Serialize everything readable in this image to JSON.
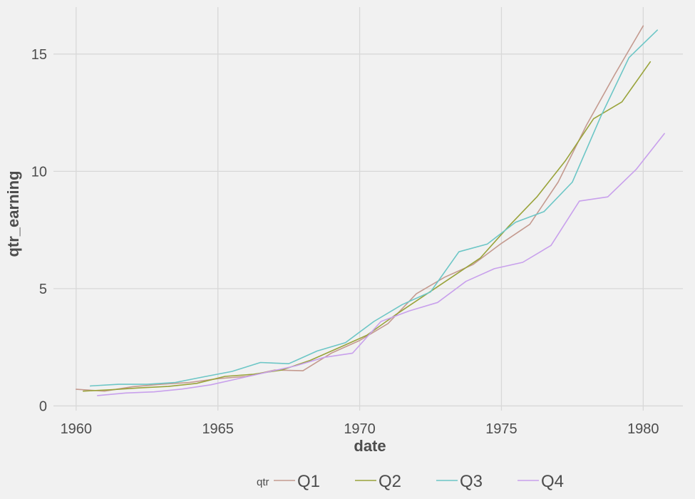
{
  "chart_data": {
    "type": "line",
    "xlabel": "date",
    "ylabel": "qtr_earning",
    "xlim": [
      1959.2,
      1981.4
    ],
    "ylim": [
      -0.2,
      17
    ],
    "x_ticks": [
      1960,
      1965,
      1970,
      1975,
      1980
    ],
    "x_tick_labels": [
      "1960",
      "1965",
      "1970",
      "1975",
      "1980"
    ],
    "y_ticks": [
      0,
      5,
      10,
      15
    ],
    "y_tick_labels": [
      "0",
      "5",
      "10",
      "15"
    ],
    "grid": true,
    "legend": {
      "title": "qtr",
      "position": "bottom"
    },
    "series": [
      {
        "name": "Q1",
        "color": "#c49a8f",
        "x": [
          1960.0,
          1961.0,
          1962.0,
          1963.0,
          1964.0,
          1965.0,
          1966.0,
          1967.0,
          1968.0,
          1969.0,
          1970.0,
          1971.0,
          1972.0,
          1973.0,
          1974.0,
          1975.0,
          1976.0,
          1977.0,
          1978.0,
          1979.0,
          1980.0
        ],
        "y": [
          0.71,
          0.63,
          0.82,
          0.92,
          1.0,
          1.16,
          1.26,
          1.53,
          1.5,
          2.25,
          2.79,
          3.51,
          4.78,
          5.49,
          6.03,
          6.93,
          7.74,
          9.54,
          11.97,
          14.13,
          16.2
        ]
      },
      {
        "name": "Q2",
        "color": "#99a33a",
        "x": [
          1960.25,
          1961.25,
          1962.25,
          1963.25,
          1964.25,
          1965.25,
          1966.25,
          1967.25,
          1968.25,
          1969.25,
          1970.25,
          1971.25,
          1972.25,
          1973.25,
          1974.25,
          1975.25,
          1976.25,
          1977.25,
          1978.25,
          1979.25,
          1980.25
        ],
        "y": [
          0.63,
          0.69,
          0.77,
          0.83,
          0.96,
          1.26,
          1.35,
          1.53,
          1.94,
          2.47,
          3.01,
          3.87,
          4.68,
          5.49,
          6.3,
          7.65,
          8.91,
          10.44,
          12.24,
          12.96,
          14.67
        ]
      },
      {
        "name": "Q3",
        "color": "#6cc6c6",
        "x": [
          1960.5,
          1961.5,
          1962.5,
          1963.5,
          1964.5,
          1965.5,
          1966.5,
          1967.5,
          1968.5,
          1969.5,
          1970.5,
          1971.5,
          1972.5,
          1973.5,
          1974.5,
          1975.5,
          1976.5,
          1977.5,
          1978.5,
          1979.5,
          1980.5
        ],
        "y": [
          0.85,
          0.92,
          0.92,
          1.0,
          1.24,
          1.47,
          1.85,
          1.8,
          2.34,
          2.7,
          3.6,
          4.32,
          4.86,
          6.57,
          6.9,
          7.83,
          8.28,
          9.54,
          12.33,
          14.85,
          16.02
        ]
      },
      {
        "name": "Q4",
        "color": "#c8a0ec",
        "x": [
          1960.75,
          1961.75,
          1962.75,
          1963.75,
          1964.75,
          1965.75,
          1966.75,
          1967.75,
          1968.75,
          1969.75,
          1970.75,
          1971.75,
          1972.75,
          1973.75,
          1974.75,
          1975.75,
          1976.75,
          1977.75,
          1978.75,
          1979.75,
          1980.75
        ],
        "y": [
          0.44,
          0.55,
          0.6,
          0.72,
          0.9,
          1.17,
          1.44,
          1.71,
          2.07,
          2.25,
          3.6,
          4.05,
          4.41,
          5.31,
          5.85,
          6.12,
          6.84,
          8.73,
          8.91,
          10.08,
          11.61
        ]
      }
    ]
  }
}
